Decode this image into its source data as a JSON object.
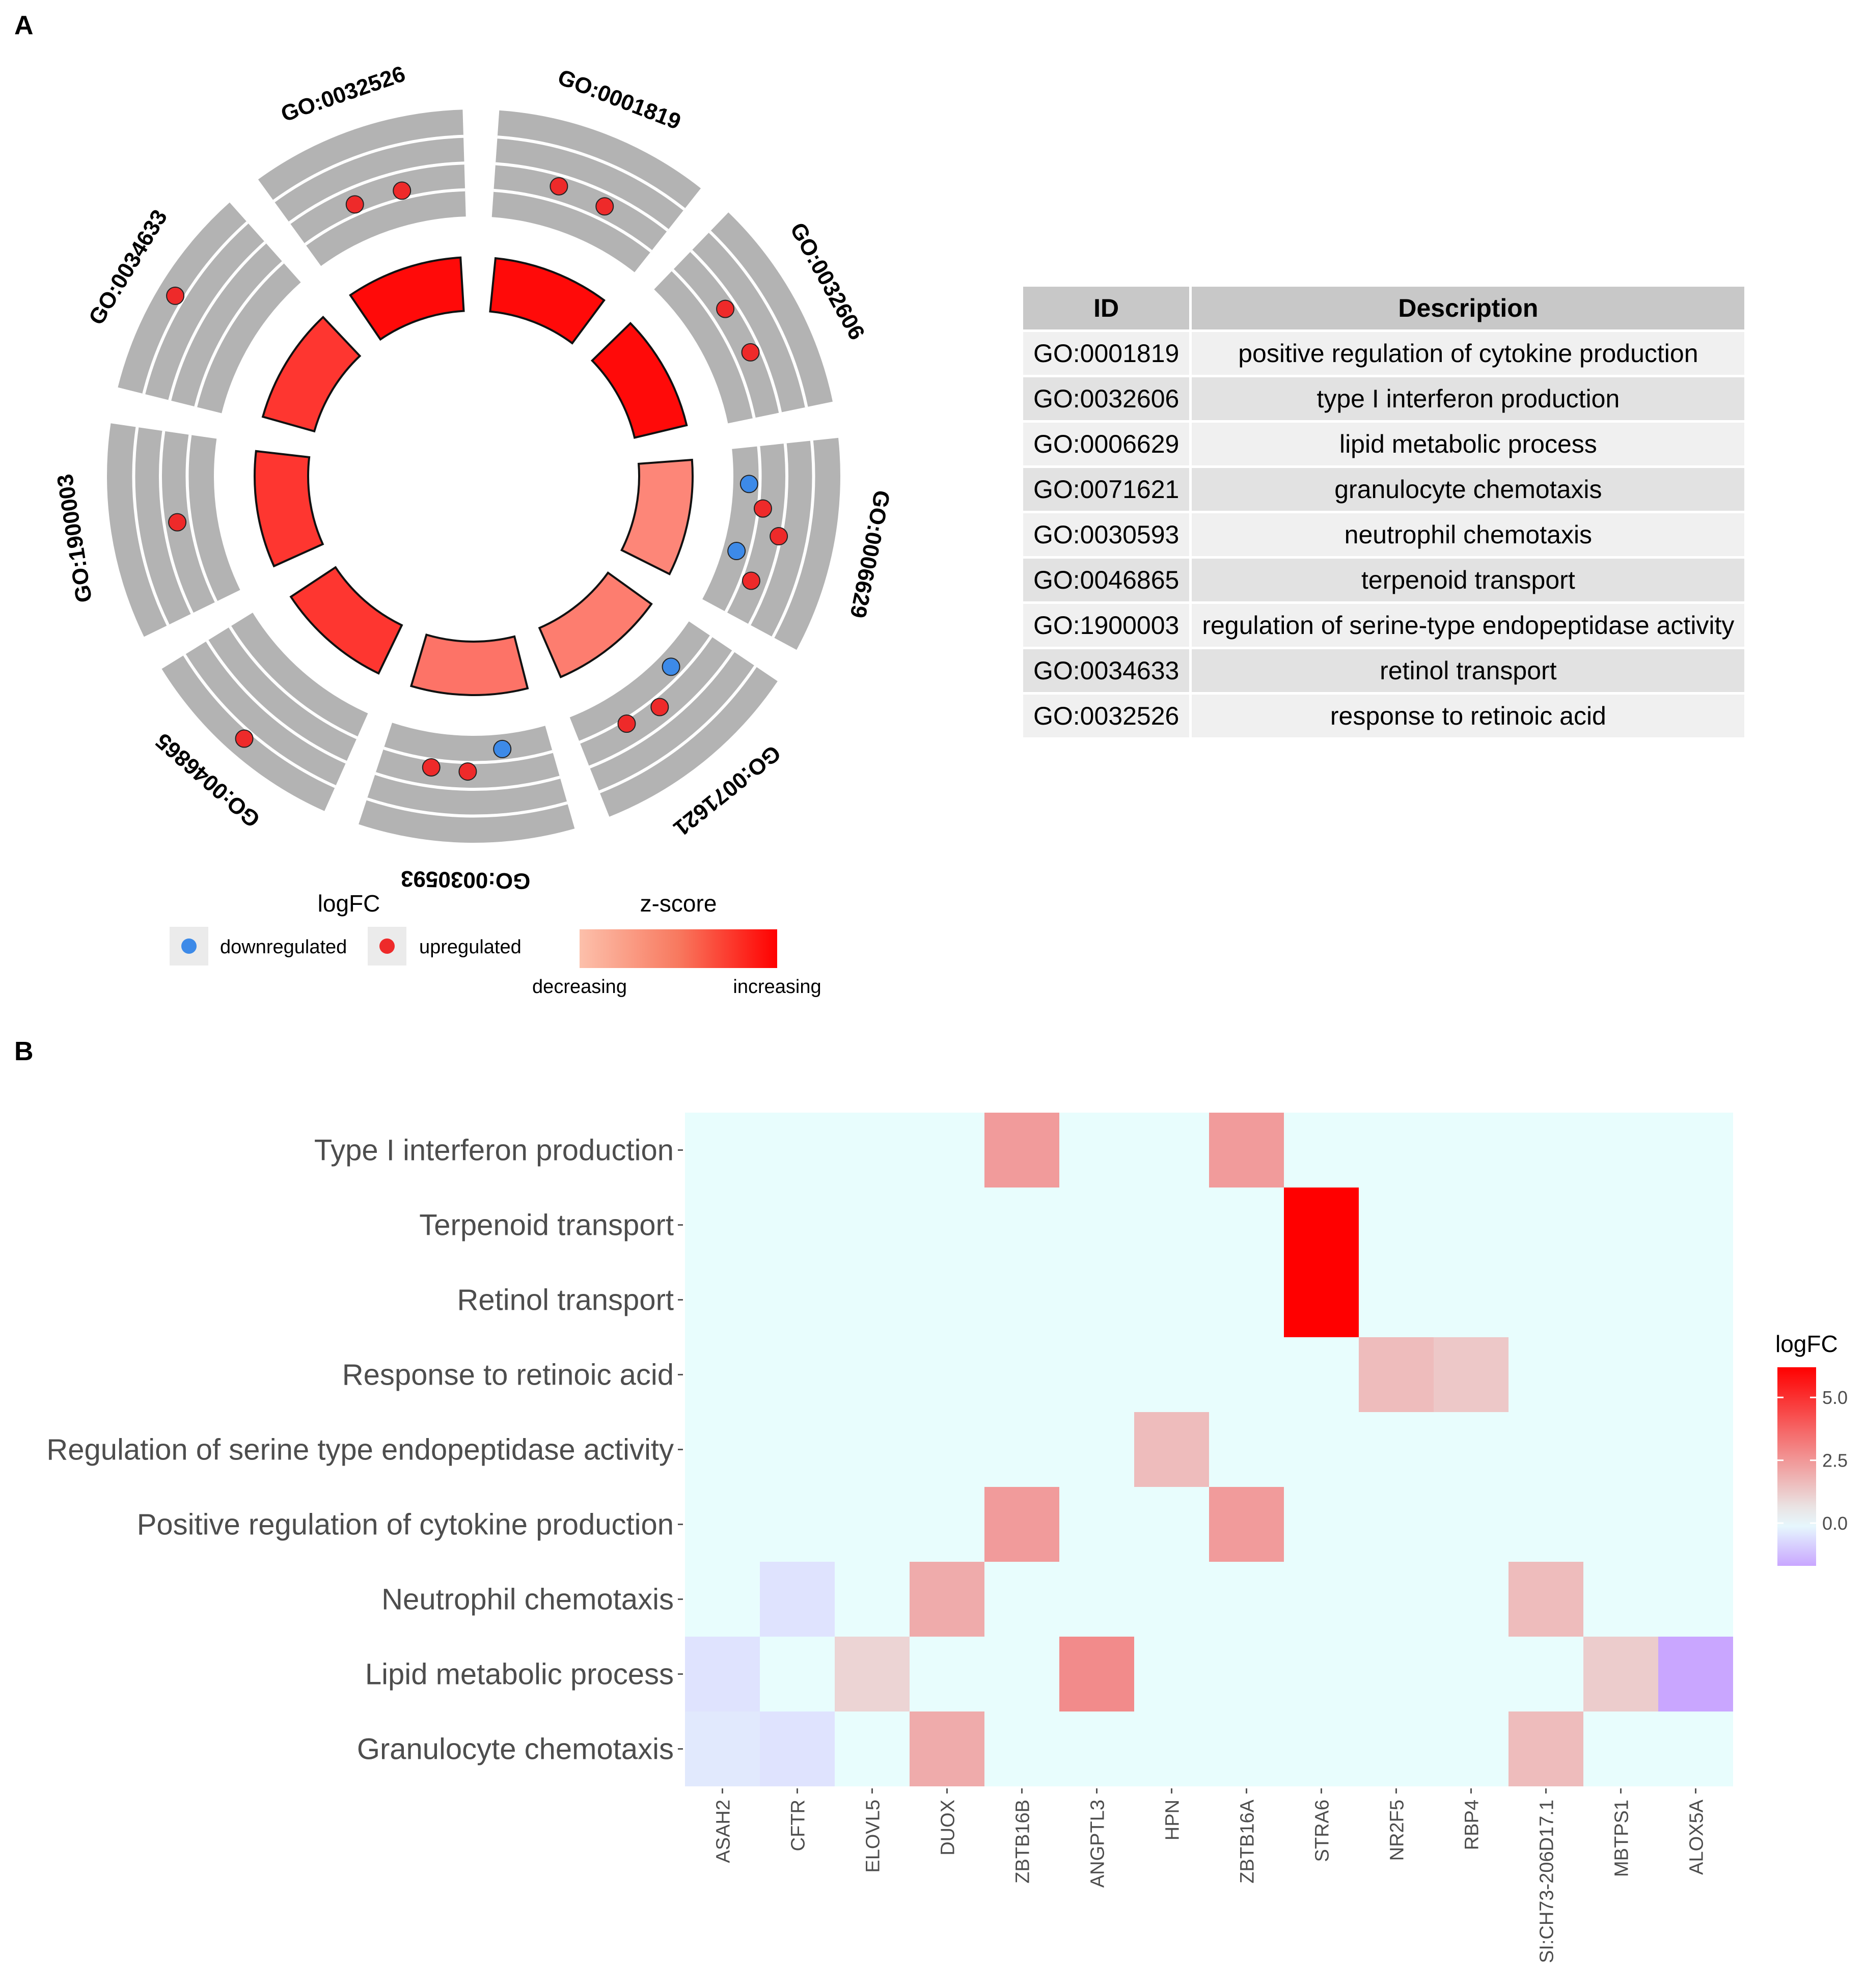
{
  "panels": {
    "a_label": "A",
    "b_label": "B"
  },
  "table": {
    "header": {
      "id": "ID",
      "description": "Description"
    },
    "rows": [
      {
        "id": "GO:0001819",
        "description": "positive regulation of cytokine production"
      },
      {
        "id": "GO:0032606",
        "description": "type I interferon production"
      },
      {
        "id": "GO:0006629",
        "description": "lipid metabolic process"
      },
      {
        "id": "GO:0071621",
        "description": "granulocyte chemotaxis"
      },
      {
        "id": "GO:0030593",
        "description": "neutrophil chemotaxis"
      },
      {
        "id": "GO:0046865",
        "description": "terpenoid transport"
      },
      {
        "id": "GO:1900003",
        "description": "regulation of serine-type endopeptidase activity"
      },
      {
        "id": "GO:0034633",
        "description": "retinol transport"
      },
      {
        "id": "GO:0032526",
        "description": "response to retinoic acid"
      }
    ]
  },
  "legend_a": {
    "logfc_title": "logFC",
    "down_label": "downregulated",
    "up_label": "upregulated",
    "zscore_title": "z-score",
    "decreasing_label": "decreasing",
    "increasing_label": "increasing"
  },
  "colors": {
    "up": "#ee2a2a",
    "down": "#3d8ae8",
    "track": "#b3b3b3",
    "heat_zero": "#e8fdfd",
    "heat_high": "#ff0000",
    "heat_low": "#c9a6ff"
  },
  "chart_data": [
    {
      "type": "circular_go_plot",
      "sectors": [
        {
          "id": "GO:0001819",
          "zscore_level": 0.95,
          "genes": [
            {
              "logfc": 2.0,
              "direction": "up"
            },
            {
              "logfc": 1.8,
              "direction": "up"
            }
          ]
        },
        {
          "id": "GO:0032606",
          "zscore_level": 0.95,
          "genes": [
            {
              "logfc": 2.0,
              "direction": "up"
            },
            {
              "logfc": 2.1,
              "direction": "up"
            }
          ]
        },
        {
          "id": "GO:0006629",
          "zscore_level": 0.3,
          "genes": [
            {
              "logfc": -0.4,
              "direction": "down"
            },
            {
              "logfc": 1.0,
              "direction": "up"
            },
            {
              "logfc": 2.8,
              "direction": "up"
            },
            {
              "logfc": -0.6,
              "direction": "down"
            },
            {
              "logfc": 1.5,
              "direction": "up"
            }
          ]
        },
        {
          "id": "GO:0071621",
          "zscore_level": 0.35,
          "genes": [
            {
              "logfc": -0.5,
              "direction": "down"
            },
            {
              "logfc": 1.5,
              "direction": "up"
            },
            {
              "logfc": 1.0,
              "direction": "up"
            }
          ]
        },
        {
          "id": "GO:0030593",
          "zscore_level": 0.4,
          "genes": [
            {
              "logfc": -0.5,
              "direction": "down"
            },
            {
              "logfc": 1.4,
              "direction": "up"
            },
            {
              "logfc": 1.3,
              "direction": "up"
            }
          ]
        },
        {
          "id": "GO:0046865",
          "zscore_level": 0.72,
          "genes": [
            {
              "logfc": 6.2,
              "direction": "up"
            }
          ]
        },
        {
          "id": "GO:1900003",
          "zscore_level": 0.72,
          "genes": [
            {
              "logfc": 1.8,
              "direction": "up"
            }
          ]
        },
        {
          "id": "GO:0034633",
          "zscore_level": 0.72,
          "genes": [
            {
              "logfc": 6.2,
              "direction": "up"
            }
          ]
        },
        {
          "id": "GO:0032526",
          "zscore_level": 0.95,
          "genes": [
            {
              "logfc": 1.5,
              "direction": "up"
            },
            {
              "logfc": 1.3,
              "direction": "up"
            }
          ]
        }
      ]
    },
    {
      "type": "heatmap",
      "title": "",
      "legend_title": "logFC",
      "legend_ticks": [
        5.0,
        2.5,
        0.0
      ],
      "value_range": [
        -1.7,
        6.2
      ],
      "x": [
        "ASAH2",
        "CFTR",
        "ELOVL5",
        "DUOX",
        "ZBTB16B",
        "ANGPTL3",
        "HPN",
        "ZBTB16A",
        "STRA6",
        "NR2F5",
        "RBP4",
        "SI:CH73-206D17.1",
        "MBTPS1",
        "ALOX5A"
      ],
      "y": [
        "Type I interferon production",
        "Terpenoid transport",
        "Retinol transport",
        "Response to retinoic acid",
        "Regulation of serine type endopeptidase activity",
        "Positive regulation of cytokine production",
        "Neutrophil chemotaxis",
        "Lipid metabolic process",
        "Granulocyte chemotaxis"
      ],
      "values": [
        [
          0,
          0,
          0,
          0,
          2.4,
          0,
          0,
          2.4,
          0,
          0,
          0,
          0,
          0,
          0
        ],
        [
          0,
          0,
          0,
          0,
          0,
          0,
          0,
          0,
          6.2,
          0,
          0,
          0,
          0,
          0
        ],
        [
          0,
          0,
          0,
          0,
          0,
          0,
          0,
          0,
          6.2,
          0,
          0,
          0,
          0,
          0
        ],
        [
          0,
          0,
          0,
          0,
          0,
          0,
          0,
          0,
          0,
          1.6,
          1.3,
          0,
          0,
          0
        ],
        [
          0,
          0,
          0,
          0,
          0,
          0,
          1.6,
          0,
          0,
          0,
          0,
          0,
          0,
          0
        ],
        [
          0,
          0,
          0,
          0,
          2.4,
          0,
          0,
          2.4,
          0,
          0,
          0,
          0,
          0,
          0
        ],
        [
          0,
          -0.5,
          0,
          2.0,
          0,
          0,
          0,
          0,
          0,
          0,
          0,
          1.6,
          0,
          0
        ],
        [
          -0.5,
          0,
          1.0,
          0,
          0,
          2.8,
          0,
          0,
          0,
          0,
          0,
          0,
          1.2,
          -1.7
        ],
        [
          -0.4,
          -0.5,
          0,
          2.0,
          0,
          0,
          0,
          0,
          0,
          0,
          0,
          1.6,
          0,
          0
        ]
      ]
    }
  ]
}
